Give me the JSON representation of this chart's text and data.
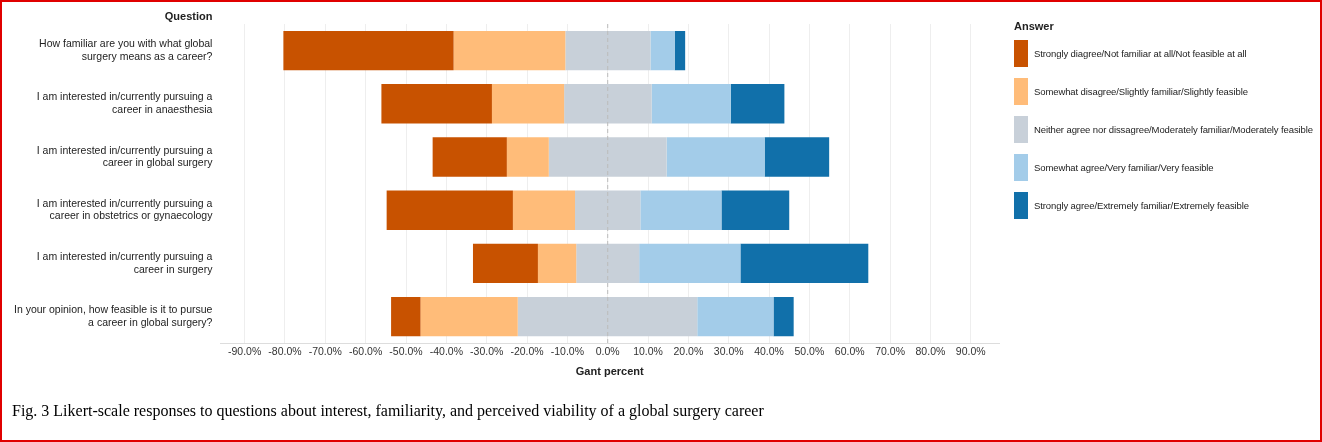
{
  "chart_data": {
    "type": "bar",
    "orientation": "horizontal",
    "ylabel": "Question",
    "xlabel": "Gant percent",
    "legend_title": "Answer",
    "categories": [
      "How familiar are you with what global surgery means as a career?",
      "I am interested in/currently pursuing a career in anaesthesia",
      "I am interested in/currently pursuing a career in global surgery",
      "I am interested in/currently pursuing a career in obstetrics or gynaecology",
      "I am interested in/currently pursuing a career in surgery",
      "In your opinion, how feasible is it to pursue a career in global surgery?"
    ],
    "series": [
      {
        "name": "Strongly diagree/Not familiar at all/Not feasible at all",
        "color": "#c85200",
        "base": [
          -80.4,
          -56.1,
          -43.4,
          -54.8,
          -33.4,
          -53.7
        ],
        "values": [
          42.2,
          27.4,
          18.4,
          31.3,
          16.1,
          7.3
        ]
      },
      {
        "name": "Somewhat disagree/Slightly familiar/Slightly feasible",
        "color": "#ffbc79",
        "base": [
          -38.2,
          -28.7,
          -25.0,
          -23.5,
          -17.3,
          -46.4
        ],
        "values": [
          27.7,
          17.9,
          10.4,
          15.4,
          9.5,
          24.1
        ]
      },
      {
        "name": "Neither agree nor dissagree/Moderately familiar/Moderately feasible",
        "color": "#c8d0d9",
        "base": [
          -10.5,
          -10.8,
          -14.6,
          -8.1,
          -7.8,
          -22.3
        ],
        "values": [
          21.1,
          21.7,
          29.2,
          16.2,
          15.6,
          44.5
        ]
      },
      {
        "name": "Somewhat agree/Very familiar/Very feasible",
        "color": "#a3cce9",
        "base": [
          10.6,
          10.9,
          14.6,
          8.1,
          7.8,
          22.2
        ],
        "values": [
          6.0,
          19.6,
          24.3,
          20.1,
          25.1,
          18.9
        ]
      },
      {
        "name": "Strongly agree/Extremely familiar/Extremely feasible",
        "color": "#1170aa",
        "base": [
          16.6,
          30.5,
          38.9,
          28.2,
          32.9,
          41.1
        ],
        "values": [
          2.6,
          13.3,
          16.0,
          16.8,
          31.7,
          5.0
        ]
      }
    ],
    "xlim": [
      -96,
      97
    ],
    "xticks": [
      {
        "value": -90,
        "label": "-90.0%"
      },
      {
        "value": -80,
        "label": "-80.0%"
      },
      {
        "value": -70,
        "label": "-70.0%"
      },
      {
        "value": -60,
        "label": "-60.0%"
      },
      {
        "value": -50,
        "label": "-50.0%"
      },
      {
        "value": -40,
        "label": "-40.0%"
      },
      {
        "value": -30,
        "label": "-30.0%"
      },
      {
        "value": -20,
        "label": "-20.0%"
      },
      {
        "value": -10,
        "label": "-10.0%"
      },
      {
        "value": 0,
        "label": "0.0%"
      },
      {
        "value": 10,
        "label": "10.0%"
      },
      {
        "value": 20,
        "label": "20.0%"
      },
      {
        "value": 30,
        "label": "30.0%"
      },
      {
        "value": 40,
        "label": "40.0%"
      },
      {
        "value": 50,
        "label": "50.0%"
      },
      {
        "value": 60,
        "label": "60.0%"
      },
      {
        "value": 70,
        "label": "70.0%"
      },
      {
        "value": 80,
        "label": "80.0%"
      },
      {
        "value": 90,
        "label": "90.0%"
      }
    ],
    "ref_lines": [
      {
        "axis": "x",
        "value": 0,
        "color": "#bbbbbb",
        "line_style": "dashed"
      }
    ],
    "grid": "x",
    "legend": "right",
    "annotations": [
      "Fig. 3  Likert-scale responses to questions about interest, familiarity, and perceived viability of a global surgery career"
    ]
  }
}
